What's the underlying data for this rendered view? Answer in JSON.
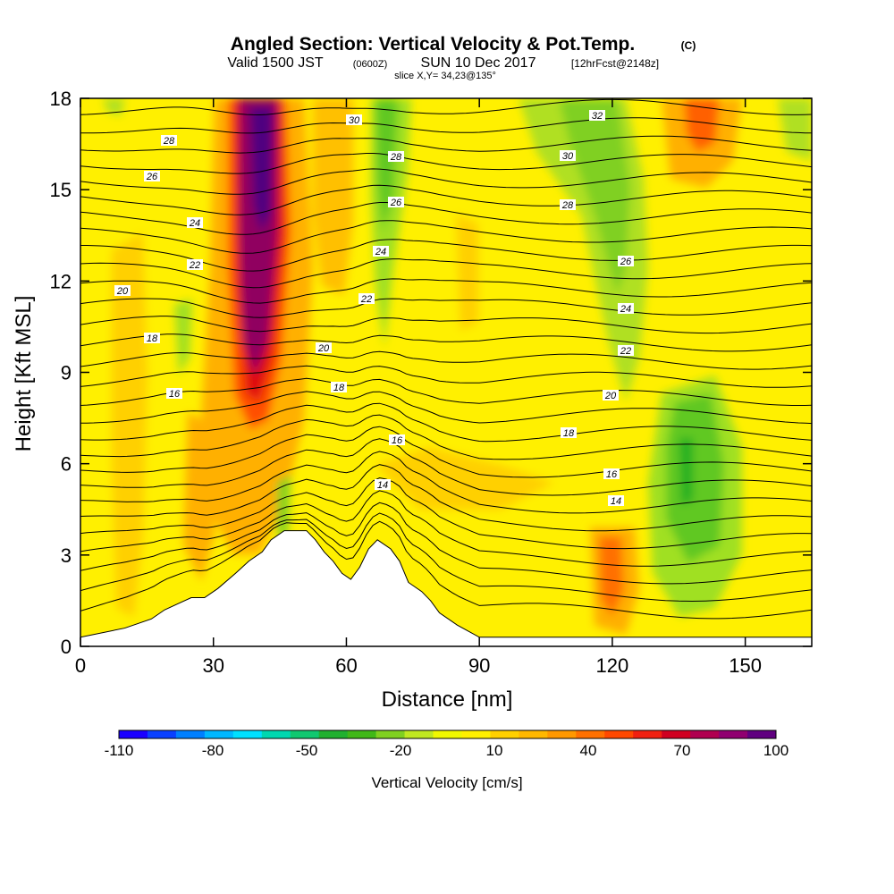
{
  "chart_data": {
    "type": "heatmap",
    "title": "Angled Section: Vertical Velocity & Pot.Temp.",
    "title_units": "(C)",
    "subtitle_valid": "Valid 1500 JST",
    "subtitle_utc": "(0600Z)",
    "subtitle_date": "SUN 10 Dec 2017",
    "subtitle_fcst": "[12hrFcst@2148z]",
    "slice_label": "slice X,Y= 34,23@135°",
    "xlabel": "Distance [nm]",
    "ylabel": "Height [Kft MSL]",
    "xlim": [
      0,
      165
    ],
    "ylim": [
      0,
      18
    ],
    "xticks": [
      "0",
      "30",
      "60",
      "90",
      "120",
      "150"
    ],
    "yticks": [
      "0",
      "3",
      "6",
      "9",
      "12",
      "15",
      "18"
    ],
    "colorbar": {
      "label": "Vertical Velocity [cm/s]",
      "tick_labels": [
        "-110",
        "-80",
        "-50",
        "-20",
        "10",
        "40",
        "70",
        "100"
      ],
      "colors": [
        "#1a00ff",
        "#0a40ff",
        "#0080ff",
        "#00b8ff",
        "#00e0ff",
        "#00d8b0",
        "#10c870",
        "#20b030",
        "#40b818",
        "#80d020",
        "#c0e820",
        "#f0f800",
        "#fff000",
        "#ffd000",
        "#ffb800",
        "#ff9800",
        "#ff7000",
        "#ff4800",
        "#f02010",
        "#d00020",
        "#b00050",
        "#900070",
        "#600080"
      ]
    },
    "isentrope_labels": [
      "14",
      "16",
      "18",
      "20",
      "22",
      "24",
      "26",
      "28",
      "30",
      "32"
    ],
    "terrain": {
      "x_nm": [
        0,
        10,
        16,
        19,
        22,
        25,
        28,
        31,
        35,
        38,
        41,
        43,
        46,
        48,
        51,
        53,
        55,
        57,
        59,
        61,
        63,
        65,
        67,
        70,
        72,
        74,
        77,
        79,
        81,
        85,
        90,
        115,
        120,
        165
      ],
      "height_kft": [
        0.3,
        0.6,
        0.9,
        1.2,
        1.4,
        1.6,
        1.6,
        1.9,
        2.4,
        2.8,
        3.1,
        3.5,
        3.8,
        3.8,
        3.8,
        3.5,
        3.1,
        2.8,
        2.4,
        2.2,
        2.6,
        3.2,
        3.5,
        3.2,
        2.8,
        2.1,
        1.8,
        1.5,
        1.1,
        0.7,
        0.3,
        0.3,
        0.3,
        0.3
      ]
    }
  }
}
